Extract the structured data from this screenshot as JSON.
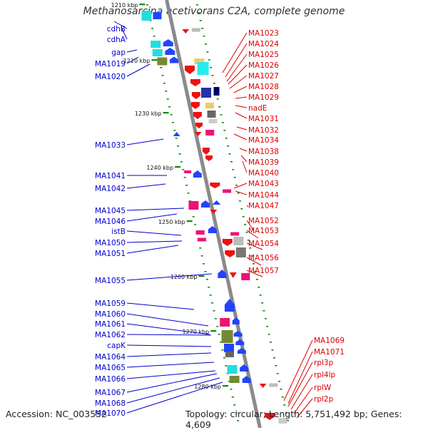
{
  "title": "Methanosarcina acetivorans C2A, complete genome",
  "accession": "Accession: NC_003552",
  "topology": "Topology: circular; Length: 5,751,492 bp; Genes: 4,609",
  "colors": {
    "left_strand_label": "#0000cc",
    "right_strand_label": "#dd0000",
    "backbone": "#8a8a8a",
    "tick": "#118811"
  },
  "kbp_ticks": [
    "1210 kbp",
    "1220 kbp",
    "1230 kbp",
    "1240 kbp",
    "1250 kbp",
    "1260 kbp",
    "1270 kbp",
    "1280 kbp"
  ],
  "left_labels": [
    "cdhB",
    "cdhA",
    "gap",
    "MA1019",
    "MA1020",
    "MA1033",
    "MA1041",
    "MA1042",
    "MA1045",
    "MA1046",
    "istB",
    "MA1050",
    "MA1051",
    "MA1055",
    "MA1059",
    "MA1060",
    "MA1061",
    "MA1062",
    "capK",
    "MA1064",
    "MA1065",
    "MA1066",
    "MA1067",
    "MA1068",
    "MA1070"
  ],
  "right_labels": [
    "MA1023",
    "MA1024",
    "MA1025",
    "MA1026",
    "MA1027",
    "MA1028",
    "MA1029",
    "nadE",
    "MA1031",
    "MA1032",
    "MA1034",
    "MA1038",
    "MA1039",
    "MA1040",
    "MA1043",
    "MA1044",
    "MA1047",
    "MA1052",
    "MA1053",
    "MA1054",
    "MA1056",
    "MA1057",
    "MA1069",
    "MA1071",
    "rpl3p",
    "rpl4lp",
    "rplW",
    "rpl2p"
  ]
}
